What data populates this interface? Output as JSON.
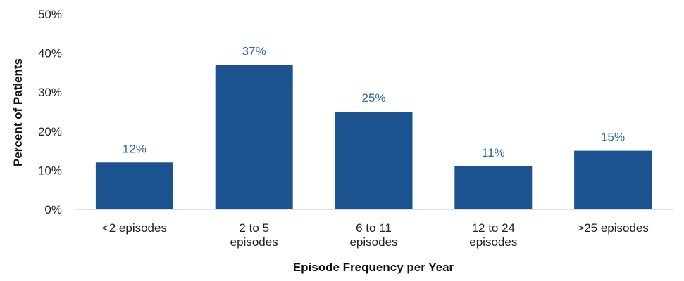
{
  "chart_data": {
    "type": "bar",
    "title": "",
    "xlabel": "Episode Frequency per Year",
    "ylabel": "Percent of Patients",
    "categories": [
      [
        "<2 episodes"
      ],
      [
        "2 to 5",
        "episodes"
      ],
      [
        "6 to 11",
        "episodes"
      ],
      [
        "12 to 24",
        "episodes"
      ],
      [
        ">25 episodes"
      ]
    ],
    "values": [
      12,
      37,
      25,
      11,
      15
    ],
    "data_labels": [
      "12%",
      "37%",
      "25%",
      "11%",
      "15%"
    ],
    "ylim": [
      0,
      50
    ],
    "yticks": [
      0,
      10,
      20,
      30,
      40,
      50
    ],
    "ytick_labels": [
      "0%",
      "10%",
      "20%",
      "30%",
      "40%",
      "50%"
    ],
    "grid": false,
    "bar_color": "#1a5390",
    "label_color": "#2f6aa6"
  }
}
